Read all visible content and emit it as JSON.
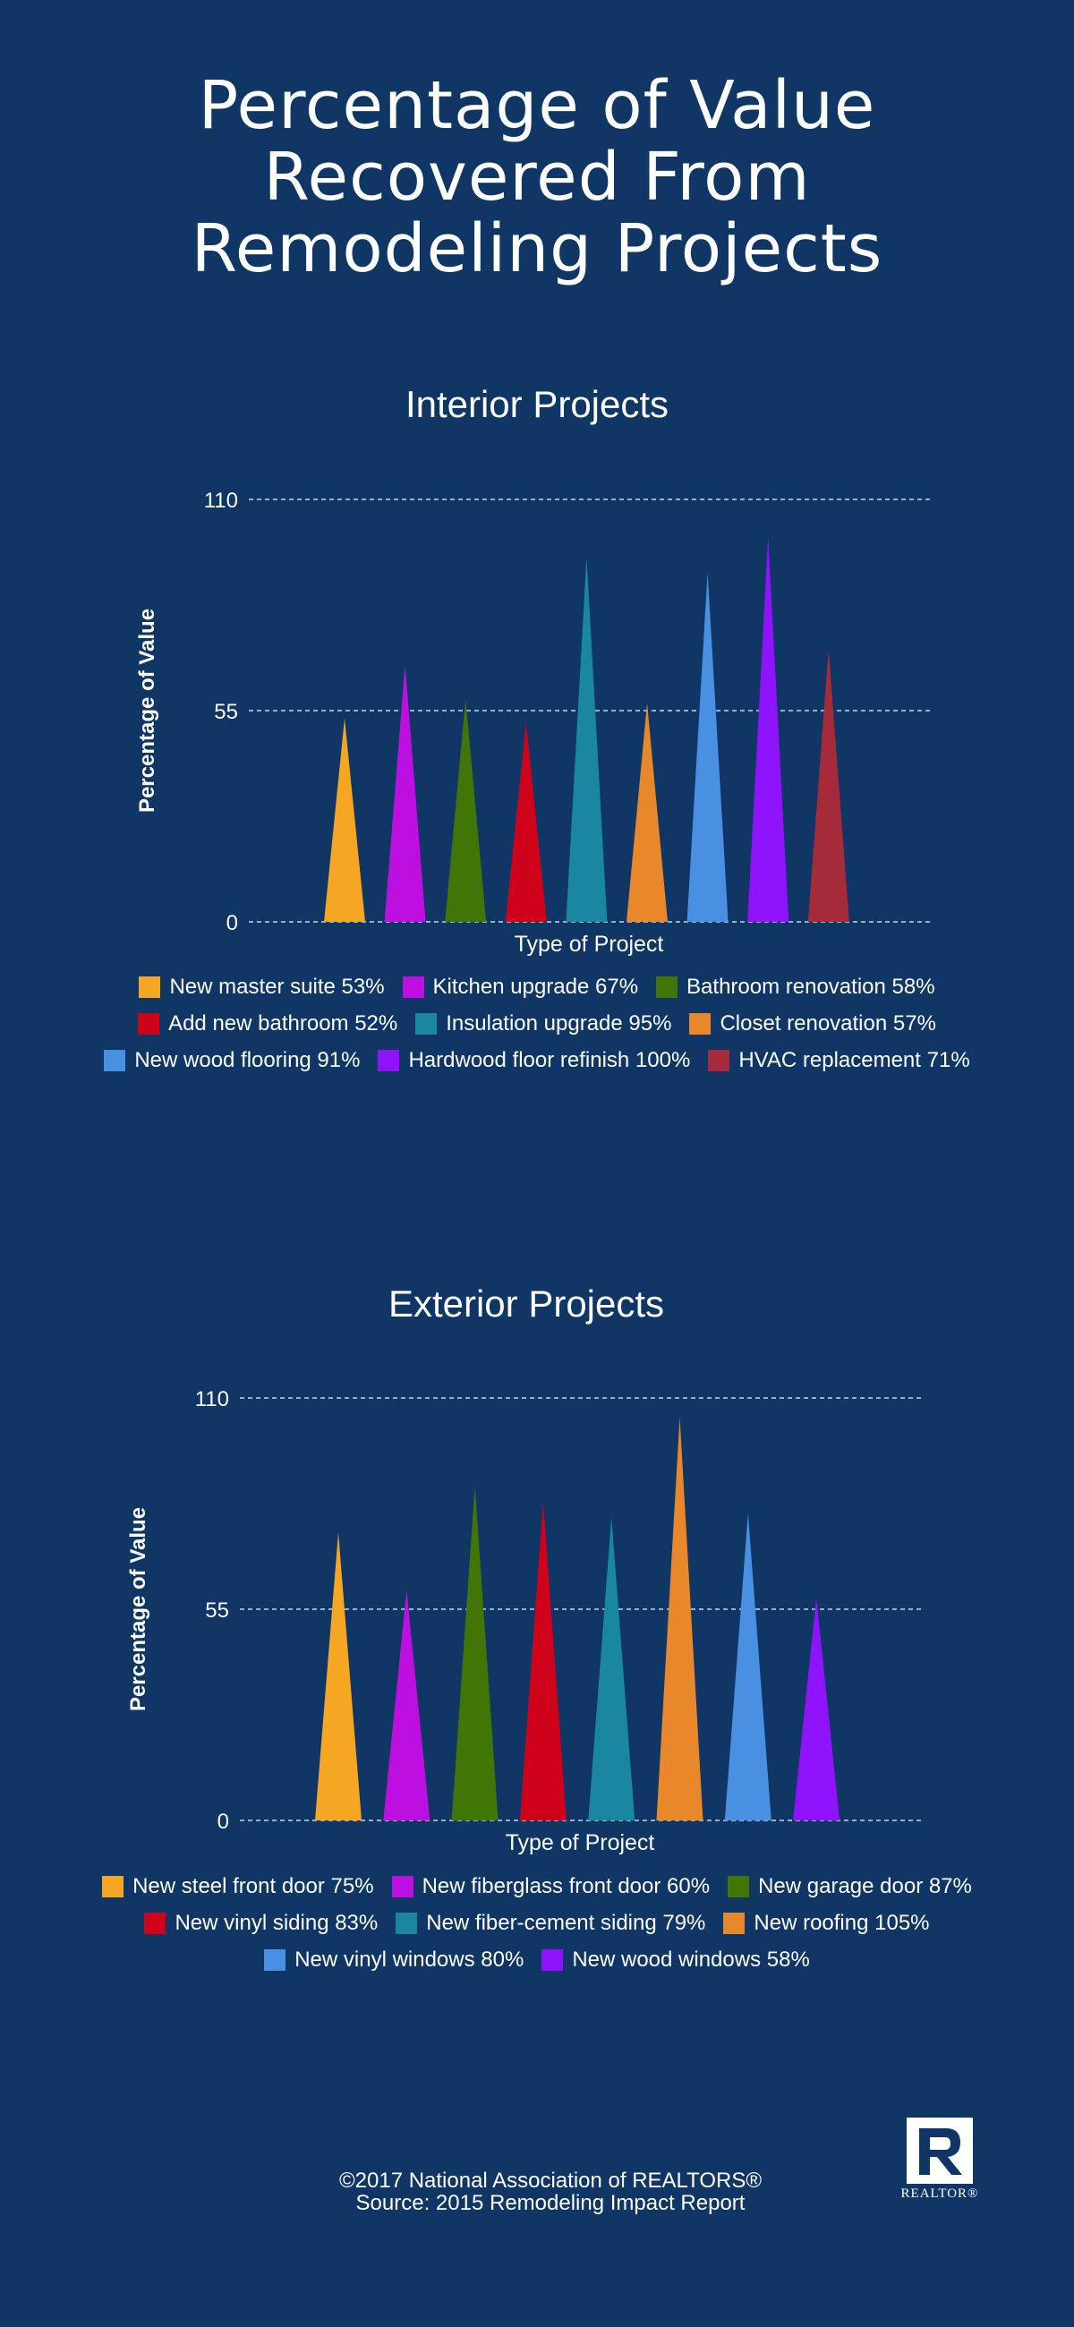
{
  "title": "Percentage of Value\nRecovered From\nRemodeling Projects",
  "chart_data": [
    {
      "type": "bar",
      "title": "Interior Projects",
      "xlabel": "Type of Project",
      "ylabel": "Percentage of Value",
      "ylim": [
        0,
        110
      ],
      "yticks": [
        "0",
        "55",
        "110"
      ],
      "grid": true,
      "legend_placement": "bottom",
      "categories": [
        "New master suite 53%",
        "Kitchen upgrade 67%",
        "Bathroom renovation 58%",
        "Add new bathroom 52%",
        "Insulation upgrade 95%",
        "Closet renovation 57%",
        "New wood flooring 91%",
        "Hardwood floor refinish 100%",
        "HVAC replacement 71%"
      ],
      "values": [
        53,
        67,
        58,
        52,
        95,
        57,
        91,
        100,
        71
      ],
      "colors": [
        "#f5a623",
        "#bd10e0",
        "#417505",
        "#d0021b",
        "#1a86a0",
        "#e8882a",
        "#4a90e2",
        "#9013fe",
        "#a52a3a"
      ]
    },
    {
      "type": "bar",
      "title": "Exterior Projects",
      "xlabel": "Type of Project",
      "ylabel": "Percentage of Value",
      "ylim": [
        0,
        110
      ],
      "yticks": [
        "0",
        "55",
        "110"
      ],
      "grid": true,
      "legend_placement": "bottom",
      "categories": [
        "New steel front door 75%",
        "New fiberglass front door 60%",
        "New garage door 87%",
        "New vinyl siding 83%",
        "New fiber-cement siding 79%",
        "New roofing 105%",
        "New vinyl windows 80%",
        "New wood windows 58%"
      ],
      "values": [
        75,
        60,
        87,
        83,
        79,
        105,
        80,
        58
      ],
      "colors": [
        "#f5a623",
        "#bd10e0",
        "#417505",
        "#d0021b",
        "#1a86a0",
        "#e8882a",
        "#4a90e2",
        "#9013fe"
      ]
    }
  ],
  "footer": {
    "copyright": "©2017 National Association of REALTORS®",
    "source": "Source: 2015 Remodeling Impact Report"
  },
  "logo": {
    "text": "REALTOR®",
    "icon": "realtor-r-icon"
  },
  "colors": {
    "background": "#0f3664",
    "text": "#ffffff",
    "grid": "#c9d6e6"
  }
}
